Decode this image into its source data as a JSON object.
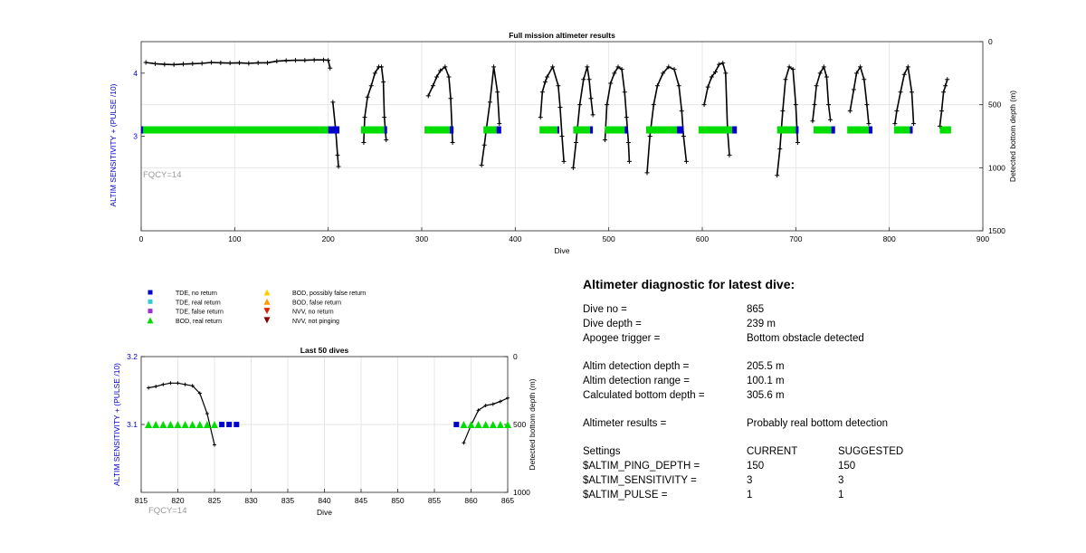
{
  "colors": {
    "tde_no_return": "#0000cc",
    "tde_real_return": "#33cccc",
    "tde_false_return": "#9933cc",
    "bod_real_return": "#00dd00",
    "bod_possibly_false": "#ffcc00",
    "bod_false_return": "#ff9900",
    "nvv_no_return": "#dd2200",
    "nvv_not_pinging": "#880000",
    "depth_line": "#000000",
    "left_axis": "#0000cc",
    "fqcy_text": "#999999"
  },
  "chart_data": [
    {
      "type": "line",
      "title": "Full mission altimeter results",
      "xlabel": "Dive",
      "ylabel": "ALTIM SENSITIVITY + (PULSE /10)",
      "ylabel_right": "Detected bottom depth (m)",
      "xlim": [
        0,
        900
      ],
      "ylim": [
        1.5,
        4.5
      ],
      "ylim_right": [
        1500,
        0
      ],
      "x_ticks": [
        "0",
        "100",
        "200",
        "300",
        "400",
        "500",
        "600",
        "700",
        "800",
        "900"
      ],
      "y_ticks": [
        "3",
        "4"
      ],
      "y_ticks_right": [
        "0",
        "500",
        "1000",
        "1500"
      ],
      "annotation": "FQCY=14",
      "grid": true,
      "series": [
        {
          "kind": "depth",
          "segments": [
            [
              [
                5,
                165
              ],
              [
                15,
                175
              ],
              [
                25,
                180
              ],
              [
                35,
                182
              ],
              [
                45,
                178
              ],
              [
                55,
                175
              ],
              [
                65,
                172
              ],
              [
                75,
                165
              ],
              [
                85,
                168
              ],
              [
                95,
                170
              ],
              [
                105,
                168
              ],
              [
                115,
                172
              ],
              [
                125,
                168
              ],
              [
                135,
                168
              ],
              [
                145,
                155
              ],
              [
                155,
                150
              ],
              [
                165,
                148
              ],
              [
                175,
                148
              ],
              [
                185,
                145
              ],
              [
                195,
                145
              ],
              [
                200,
                148
              ],
              [
                202,
                210
              ]
            ],
            [
              [
                205,
                480
              ],
              [
                208,
                700
              ],
              [
                210,
                900
              ],
              [
                211,
                990
              ]
            ],
            [
              [
                238,
                800
              ],
              [
                239,
                600
              ],
              [
                242,
                440
              ],
              [
                246,
                350
              ],
              [
                250,
                250
              ],
              [
                254,
                200
              ],
              [
                257,
                200
              ],
              [
                259,
                320
              ],
              [
                260,
                600
              ],
              [
                262,
                780
              ]
            ],
            [
              [
                307,
                430
              ],
              [
                312,
                350
              ],
              [
                316,
                280
              ],
              [
                320,
                230
              ],
              [
                325,
                200
              ],
              [
                329,
                280
              ],
              [
                331,
                450
              ],
              [
                333,
                800
              ]
            ],
            [
              [
                364,
                980
              ],
              [
                367,
                820
              ],
              [
                369,
                700
              ],
              [
                373,
                480
              ],
              [
                377,
                200
              ],
              [
                381,
                400
              ],
              [
                383,
                650
              ]
            ],
            [
              [
                427,
                600
              ],
              [
                429,
                400
              ],
              [
                432,
                320
              ],
              [
                434,
                280
              ],
              [
                440,
                200
              ],
              [
                446,
                350
              ],
              [
                448,
                520
              ],
              [
                450,
                750
              ],
              [
                452,
                950
              ]
            ],
            [
              [
                462,
                1000
              ],
              [
                465,
                800
              ],
              [
                469,
                500
              ],
              [
                473,
                300
              ],
              [
                477,
                200
              ],
              [
                479,
                300
              ],
              [
                481,
                450
              ],
              [
                483,
                580
              ]
            ],
            [
              [
                496,
                780
              ],
              [
                498,
                500
              ],
              [
                502,
                330
              ],
              [
                506,
                250
              ],
              [
                510,
                200
              ],
              [
                514,
                220
              ],
              [
                517,
                400
              ],
              [
                519,
                600
              ],
              [
                521,
                800
              ],
              [
                522,
                950
              ]
            ],
            [
              [
                541,
                1040
              ],
              [
                544,
                750
              ],
              [
                548,
                500
              ],
              [
                552,
                350
              ],
              [
                558,
                250
              ],
              [
                564,
                200
              ],
              [
                570,
                220
              ],
              [
                575,
                350
              ],
              [
                578,
                550
              ],
              [
                580,
                750
              ],
              [
                583,
                950
              ]
            ],
            [
              [
                602,
                500
              ],
              [
                606,
                360
              ],
              [
                610,
                280
              ],
              [
                614,
                240
              ],
              [
                618,
                180
              ],
              [
                622,
                170
              ],
              [
                625,
                250
              ],
              [
                627,
                700
              ],
              [
                629,
                900
              ]
            ],
            [
              [
                680,
                1060
              ],
              [
                683,
                850
              ],
              [
                686,
                550
              ],
              [
                689,
                300
              ],
              [
                693,
                200
              ],
              [
                697,
                220
              ],
              [
                700,
                500
              ],
              [
                702,
                800
              ]
            ],
            [
              [
                718,
                630
              ],
              [
                720,
                500
              ],
              [
                722,
                350
              ],
              [
                726,
                250
              ],
              [
                730,
                200
              ],
              [
                733,
                280
              ],
              [
                735,
                500
              ],
              [
                737,
                620
              ]
            ],
            [
              [
                758,
                550
              ],
              [
                762,
                380
              ],
              [
                765,
                250
              ],
              [
                769,
                200
              ],
              [
                773,
                300
              ],
              [
                776,
                500
              ],
              [
                778,
                650
              ]
            ],
            [
              [
                806,
                650
              ],
              [
                808,
                550
              ],
              [
                812,
                400
              ],
              [
                816,
                260
              ],
              [
                820,
                200
              ],
              [
                824,
                400
              ],
              [
                826,
                650
              ]
            ],
            [
              [
                854,
                670
              ],
              [
                856,
                550
              ],
              [
                858,
                400
              ],
              [
                860,
                350
              ],
              [
                862,
                300
              ]
            ]
          ]
        },
        {
          "kind": "bod_real_return",
          "y": 3.1,
          "ranges": [
            [
              0,
              200
            ],
            [
              235,
              260
            ],
            [
              303,
              330
            ],
            [
              366,
              380
            ],
            [
              426,
              445
            ],
            [
              462,
              480
            ],
            [
              496,
              517
            ],
            [
              540,
              573
            ],
            [
              596,
              632
            ],
            [
              680,
              700
            ],
            [
              719,
              738
            ],
            [
              755,
              778
            ],
            [
              805,
              822
            ],
            [
              854,
              866
            ]
          ]
        },
        {
          "kind": "tde_no_return",
          "y": 3.1,
          "ranges": [
            [
              0,
              2
            ],
            [
              200,
              212
            ],
            [
              260,
              263
            ],
            [
              330,
              334
            ],
            [
              380,
              385
            ],
            [
              445,
              447
            ],
            [
              480,
              483
            ],
            [
              517,
              520
            ],
            [
              573,
              580
            ],
            [
              632,
              637
            ],
            [
              700,
              703
            ],
            [
              738,
              742
            ],
            [
              778,
              782
            ],
            [
              822,
              825
            ]
          ]
        }
      ]
    },
    {
      "type": "line",
      "title": "Last 50 dives",
      "xlabel": "Dive",
      "ylabel": "ALTIM SENSITIVITY + (PULSE /10)",
      "ylabel_right": "Detected bottom depth (m)",
      "xlim": [
        815,
        865
      ],
      "ylim": [
        3.0,
        3.2
      ],
      "ylim_right": [
        1000,
        0
      ],
      "x_ticks": [
        "815",
        "820",
        "825",
        "830",
        "835",
        "840",
        "845",
        "850",
        "855",
        "860",
        "865"
      ],
      "y_ticks": [
        "3.1",
        "3.2"
      ],
      "y_ticks_right": [
        "0",
        "500",
        "1000"
      ],
      "annotation": "FQCY=14",
      "grid": true,
      "series": [
        {
          "kind": "depth",
          "segments": [
            [
              [
                816,
                230
              ],
              [
                817,
                220
              ],
              [
                818,
                205
              ],
              [
                819,
                195
              ],
              [
                820,
                195
              ],
              [
                821,
                205
              ],
              [
                822,
                215
              ],
              [
                823,
                270
              ],
              [
                824,
                420
              ],
              [
                825,
                650
              ]
            ],
            [
              [
                859,
                635
              ],
              [
                860,
                505
              ],
              [
                861,
                395
              ],
              [
                862,
                360
              ],
              [
                863,
                350
              ],
              [
                864,
                330
              ],
              [
                865,
                305
              ]
            ]
          ]
        },
        {
          "kind": "bod_real_return",
          "points": [
            [
              816,
              3.1
            ],
            [
              817,
              3.1
            ],
            [
              818,
              3.1
            ],
            [
              819,
              3.1
            ],
            [
              820,
              3.1
            ],
            [
              821,
              3.1
            ],
            [
              822,
              3.1
            ],
            [
              823,
              3.1
            ],
            [
              824,
              3.1
            ],
            [
              825,
              3.1
            ],
            [
              859,
              3.1
            ],
            [
              860,
              3.1
            ],
            [
              861,
              3.1
            ],
            [
              862,
              3.1
            ],
            [
              863,
              3.1
            ],
            [
              864,
              3.1
            ],
            [
              865,
              3.1
            ]
          ]
        },
        {
          "kind": "tde_no_return",
          "points": [
            [
              826,
              3.1
            ],
            [
              827,
              3.1
            ],
            [
              828,
              3.1
            ],
            [
              858,
              3.1
            ]
          ]
        }
      ]
    }
  ],
  "legend": [
    {
      "label": "TDE, no return",
      "marker": "square",
      "color_key": "tde_no_return"
    },
    {
      "label": "TDE, real return",
      "marker": "square",
      "color_key": "tde_real_return"
    },
    {
      "label": "TDE, false return",
      "marker": "square",
      "color_key": "tde_false_return"
    },
    {
      "label": "BOD, real return",
      "marker": "triangle-up",
      "color_key": "bod_real_return"
    },
    {
      "label": "BOD, possibly false return",
      "marker": "triangle-up",
      "color_key": "bod_possibly_false"
    },
    {
      "label": "BOD, false return",
      "marker": "triangle-up",
      "color_key": "bod_false_return"
    },
    {
      "label": "NVV, no return",
      "marker": "triangle-down",
      "color_key": "nvv_no_return"
    },
    {
      "label": "NVV, not pinging",
      "marker": "triangle-down",
      "color_key": "nvv_not_pinging"
    }
  ],
  "diagnostic": {
    "heading": "Altimeter diagnostic for latest dive:",
    "dive_no_label": "Dive no =",
    "dive_no": "865",
    "dive_depth_label": "Dive depth =",
    "dive_depth": "239 m",
    "apogee_label": "Apogee trigger =",
    "apogee": "Bottom obstacle detected",
    "altim_det_depth_label": "Altim detection depth =",
    "altim_det_depth": "205.5 m",
    "altim_det_range_label": "Altim detection range =",
    "altim_det_range": "100.1 m",
    "calc_bottom_label": "Calculated bottom depth =",
    "calc_bottom": "305.6 m",
    "results_label": "Altimeter results =",
    "results": "Probably real bottom detection",
    "settings_label": "Settings",
    "current_label": "CURRENT",
    "suggested_label": "SUGGESTED",
    "ping_depth_label": "$ALTIM_PING_DEPTH =",
    "ping_depth_current": "150",
    "ping_depth_suggested": "150",
    "sensitivity_label": "$ALTIM_SENSITIVITY =",
    "sensitivity_current": "3",
    "sensitivity_suggested": "3",
    "pulse_label": "$ALTIM_PULSE =",
    "pulse_current": "1",
    "pulse_suggested": "1"
  }
}
